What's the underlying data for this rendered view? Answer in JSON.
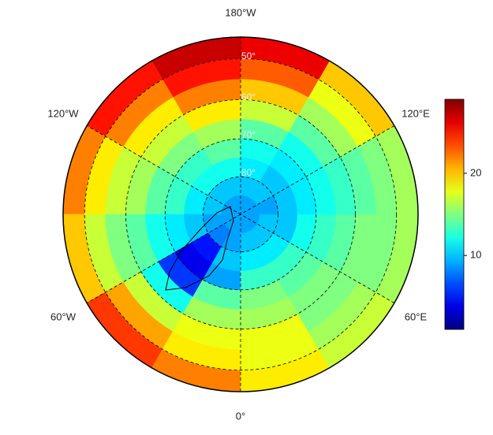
{
  "map": {
    "projection": "north-polar-stereographic",
    "extent_lat": 45,
    "lon_labels": [
      "180°W",
      "120°W",
      "120°E",
      "60°W",
      "60°E",
      "0°"
    ],
    "lat_labels": [
      "50°",
      "60°",
      "70°",
      "80°"
    ],
    "field": {
      "lat_edges": [
        45,
        50,
        55,
        60,
        65,
        70,
        75,
        80,
        85,
        90
      ],
      "lon_edges": [
        -180,
        -150,
        -120,
        -90,
        -60,
        -30,
        0,
        30,
        60,
        90,
        120,
        150,
        180
      ],
      "values": [
        [
          27,
          25,
          22,
          20,
          24,
          22,
          19,
          17,
          16,
          16,
          20,
          26
        ],
        [
          25,
          22,
          19,
          17,
          21,
          19,
          18,
          16,
          15,
          15,
          18,
          23
        ],
        [
          22,
          19,
          17,
          15,
          17,
          18,
          18,
          15,
          15,
          14,
          16,
          20
        ],
        [
          19,
          17,
          16,
          14,
          12,
          16,
          16,
          15,
          14,
          13,
          14,
          17
        ],
        [
          16,
          15,
          14,
          12,
          6,
          14,
          15,
          14,
          13,
          12,
          12,
          14
        ],
        [
          14,
          13,
          13,
          11,
          4,
          9,
          13,
          13,
          12,
          11,
          11,
          12
        ],
        [
          12,
          12,
          11,
          10,
          5,
          10,
          11,
          11,
          10,
          10,
          10,
          11
        ],
        [
          10,
          10,
          10,
          9,
          8,
          9,
          10,
          10,
          10,
          9,
          10,
          10
        ],
        [
          9,
          9,
          9,
          9,
          9,
          9,
          9,
          9,
          9,
          9,
          9,
          9
        ]
      ]
    }
  },
  "colorbar": {
    "lim": [
      1,
      29
    ],
    "ticks": [
      10,
      20
    ]
  }
}
